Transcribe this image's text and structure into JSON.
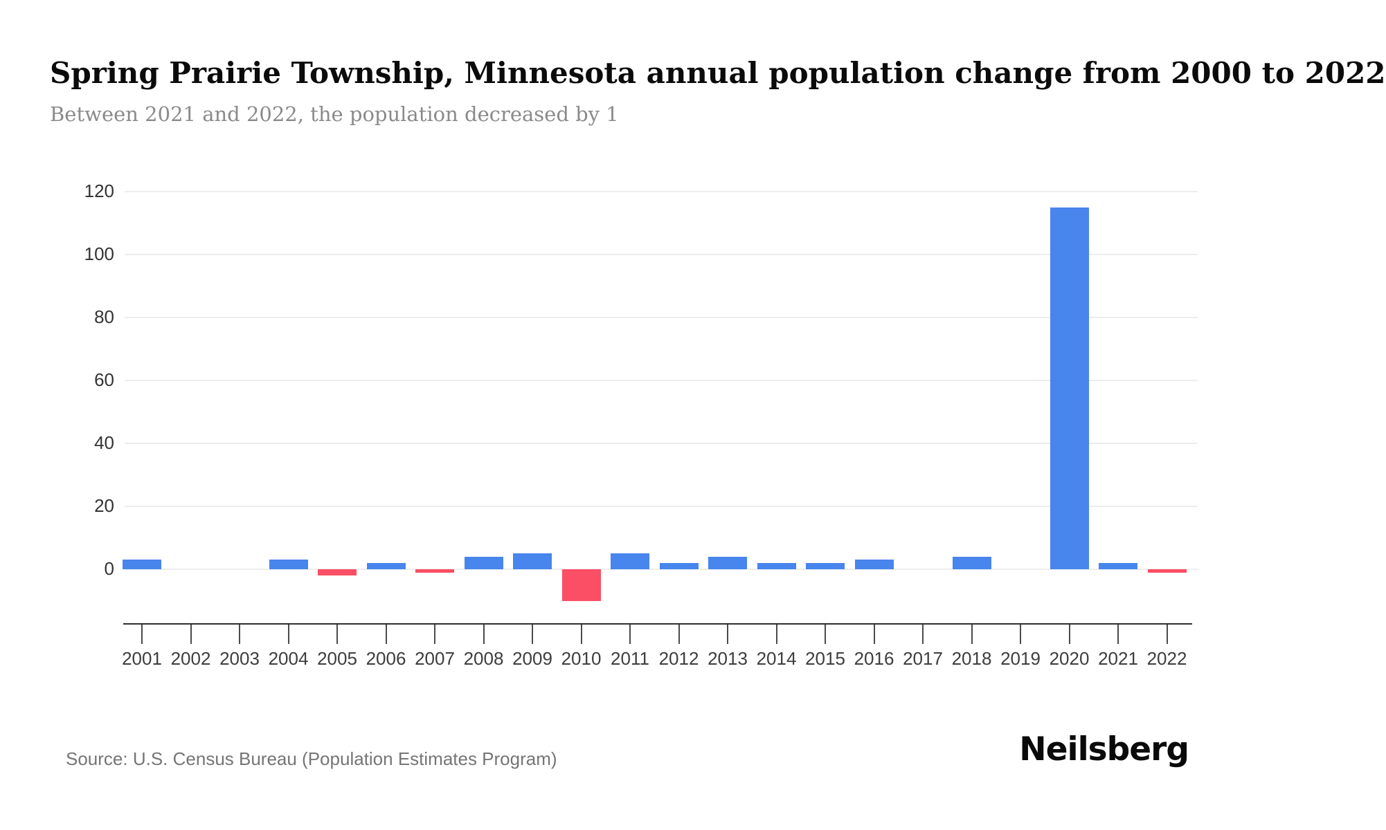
{
  "header": {
    "title": "Spring Prairie Township, Minnesota annual population change from 2000 to 2022",
    "subtitle": "Between 2021 and 2022, the population decreased by 1"
  },
  "chart_data": {
    "type": "bar",
    "title": "Spring Prairie Township, Minnesota annual population change from 2000 to 2022",
    "categories": [
      "2001",
      "2002",
      "2003",
      "2004",
      "2005",
      "2006",
      "2007",
      "2008",
      "2009",
      "2010",
      "2011",
      "2012",
      "2013",
      "2014",
      "2015",
      "2016",
      "2017",
      "2018",
      "2019",
      "2020",
      "2021",
      "2022"
    ],
    "values": [
      3,
      0,
      0,
      3,
      -2,
      2,
      -1,
      4,
      5,
      -10,
      5,
      2,
      4,
      2,
      2,
      3,
      0,
      4,
      0,
      115,
      2,
      -1
    ],
    "xlabel": "",
    "ylabel": "",
    "yticks": [
      0,
      20,
      40,
      60,
      80,
      100,
      120
    ],
    "ylim": [
      -17.5,
      120
    ],
    "grid": true,
    "legend": "none",
    "positive_color": "#4885ed",
    "negative_color": "#fa4f64"
  },
  "footer": {
    "source": "Source: U.S. Census Bureau (Population Estimates Program)",
    "brand": "Neilsberg"
  }
}
